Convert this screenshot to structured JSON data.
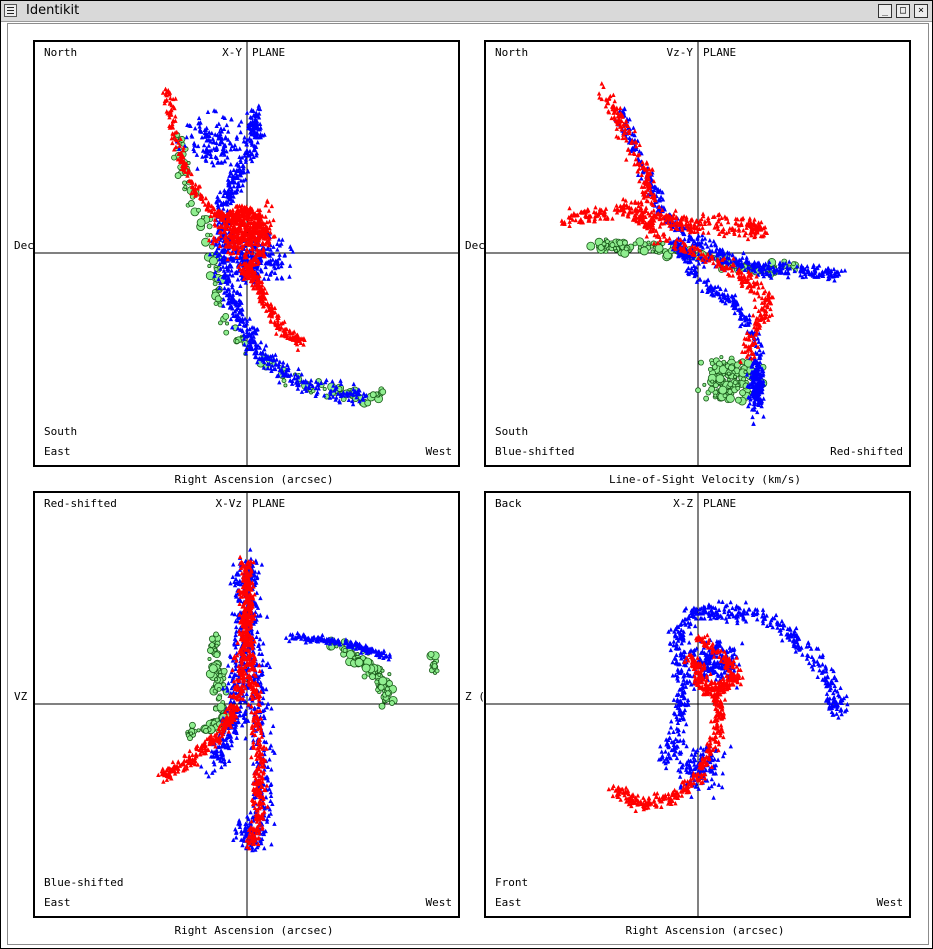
{
  "window": {
    "title": "Identikit"
  },
  "colors": {
    "series_a": "#ff0000",
    "series_b": "#0000ff",
    "gas": "#90ee90",
    "gas_edge": "#1a5a1a",
    "axis": "#000000"
  },
  "panels": [
    {
      "id": "xy",
      "plane_left": "X-Y",
      "plane_right": "PLANE",
      "corner_top_left": "North",
      "corner_bottom_left_1": "South",
      "corner_bottom_left_2": "East",
      "corner_bottom_right_1": "",
      "corner_bottom_right_2": "West",
      "side_label": "Dec",
      "bottom_label": "Right Ascension (arcsec)"
    },
    {
      "id": "vzy",
      "plane_left": "Vz-Y",
      "plane_right": "PLANE",
      "corner_top_left": "North",
      "corner_bottom_left_1": "South",
      "corner_bottom_left_2": "Blue-shifted",
      "corner_bottom_right_1": "",
      "corner_bottom_right_2": "Red-shifted",
      "side_label": "Dec",
      "bottom_label": "Line-of-Sight Velocity (km/s)"
    },
    {
      "id": "xvz",
      "plane_left": "X-Vz",
      "plane_right": "PLANE",
      "corner_top_left": "Red-shifted",
      "corner_bottom_left_1": "Blue-shifted",
      "corner_bottom_left_2": "East",
      "corner_bottom_right_1": "",
      "corner_bottom_right_2": "West",
      "side_label": "VZ",
      "bottom_label": "Right Ascension (arcsec)"
    },
    {
      "id": "xz",
      "plane_left": "X-Z",
      "plane_right": "PLANE",
      "corner_top_left": "Back",
      "corner_bottom_left_1": "Front",
      "corner_bottom_left_2": "East",
      "corner_bottom_right_1": "",
      "corner_bottom_right_2": "West",
      "side_label": "Z (",
      "bottom_label": "Right Ascension (arcsec)"
    }
  ]
}
